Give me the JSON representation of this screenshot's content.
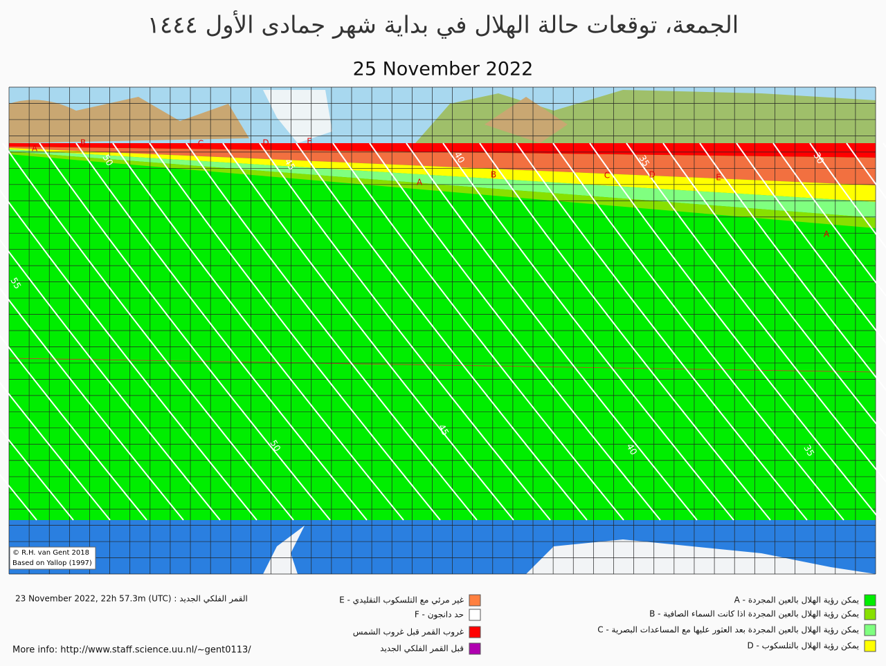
{
  "header": {
    "title": "الجمعة، توقعات حالة الهلال في بداية شهر جمادى الأول ١٤٤٤",
    "date": "25 November 2022"
  },
  "map": {
    "credit": [
      "© R.H. van Gent 2018",
      "Based on Yallop (1997)"
    ],
    "contour_labels": [
      "50",
      "45",
      "40",
      "35",
      "30",
      "55",
      "50",
      "45",
      "40",
      "35"
    ],
    "zone_labels": [
      "A",
      "B",
      "C",
      "D",
      "E",
      "A",
      "B",
      "C",
      "D",
      "E",
      "A"
    ]
  },
  "legend": {
    "items": [
      {
        "label": "A - يمكن رؤية الهلال بالعين المجردة",
        "color": "#00ee00"
      },
      {
        "label": "B - يمكن رؤية الهلال بالعين المجردة اذا كانت السماء الصافية",
        "color": "#88e000"
      },
      {
        "label": "C - يمكن رؤية الهلال بالعين المجردة بعد العثور عليها مع المساعدات البصرية",
        "color": "#80ff80"
      },
      {
        "label": "D - يمكن رؤية الهلال بالتلسكوب",
        "color": "#ffff00"
      },
      {
        "label": "E - غير مرئي مع التلسكوب التقليدي",
        "color": "#ff8040"
      },
      {
        "label": "F - حد دانجون",
        "color": "#ffffff"
      },
      {
        "label": "غروب القمر قبل غروب الشمس",
        "color": "#ff0000"
      },
      {
        "label": "قبل القمر  الفلكي الجديد",
        "color": "#b000b0"
      }
    ]
  },
  "footer": {
    "conjunction": "23 November 2022, 22h 57.3m (UTC) : القمر الفلكي الجديد",
    "info": "More info: http://www.staff.science.uu.nl/~gent0113/"
  }
}
